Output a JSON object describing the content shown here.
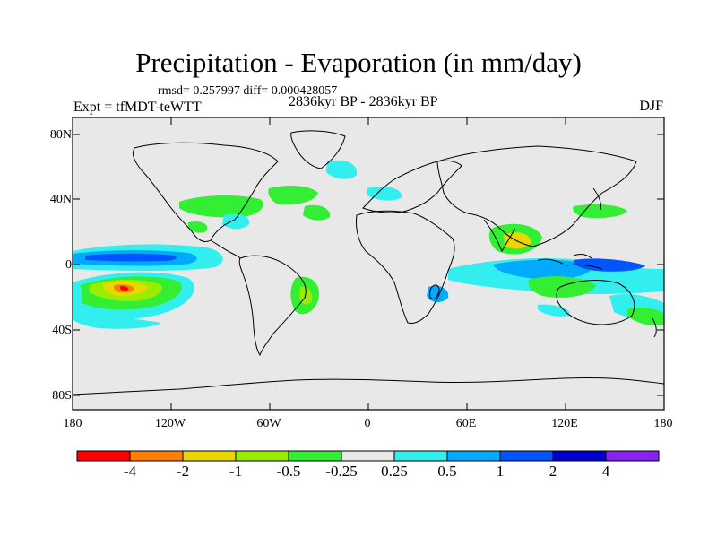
{
  "title": "Precipitation - Evaporation (in mm/day)",
  "stats": "rmsd= 0.257997 diff= 0.000428057",
  "experiment": "Expt = tfMDT-teWTT",
  "period": "2836kyr BP - 2836kyr BP",
  "season": "DJF",
  "map": {
    "projection": "cylindrical-equidistant",
    "lon_range": [
      -180,
      180
    ],
    "lat_range": [
      -90,
      90
    ],
    "y_ticks": [
      "80N",
      "40N",
      "0",
      "40S",
      "80S"
    ],
    "x_ticks": [
      "180",
      "120W",
      "60W",
      "0",
      "60E",
      "120E",
      "180"
    ],
    "background_color": "#e8e8e8"
  },
  "colorbar": {
    "colors": [
      "#ff0000",
      "#ff8000",
      "#e8d800",
      "#99ee00",
      "#33ee33",
      "#e8e8e8",
      "#33eeee",
      "#00aaff",
      "#0055ff",
      "#0000cc",
      "#8822ee"
    ],
    "labels": [
      "-4",
      "-2",
      "-1",
      "-0.5",
      "-0.25",
      "0.25",
      "0.5",
      "1",
      "2",
      "4"
    ]
  }
}
